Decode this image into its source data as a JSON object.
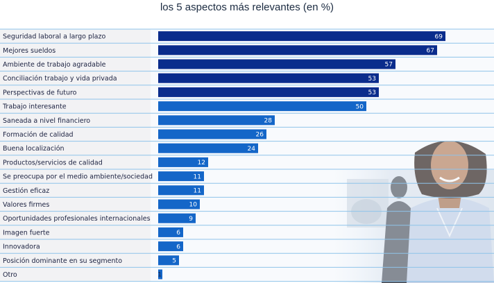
{
  "chart_data": {
    "type": "bar",
    "orientation": "horizontal",
    "title": "los 5 aspectos más relevantes (en %)",
    "categories": [
      "Seguridad laboral a largo plazo",
      "Mejores sueldos",
      "Ambiente de trabajo agradable",
      "Conciliación trabajo y vida privada",
      "Perspectivas de futuro",
      "Trabajo interesante",
      "Saneada a nivel financiero",
      "Formación de calidad",
      "Buena localización",
      "Productos/servicios de calidad",
      "Se preocupa por el medio ambiente/sociedad",
      "Gestión eficaz",
      "Valores firmes",
      "Oportunidades profesionales internacionales",
      "Imagen fuerte",
      "Innovadora",
      "Posición dominante en su segmento",
      "Otro"
    ],
    "values": [
      69,
      67,
      57,
      53,
      53,
      50,
      28,
      26,
      24,
      12,
      11,
      11,
      10,
      9,
      6,
      6,
      5,
      1
    ],
    "highlight_top_n": 5,
    "xlim": [
      0,
      100
    ],
    "grid": false,
    "legend": "none"
  },
  "colors": {
    "bar_top": "#0a2c8c",
    "bar_other": "#1466c8",
    "row_line": "#8ec3ea",
    "label_bg": "#f2f2f4",
    "plot_bg": "#eaf2f9"
  }
}
